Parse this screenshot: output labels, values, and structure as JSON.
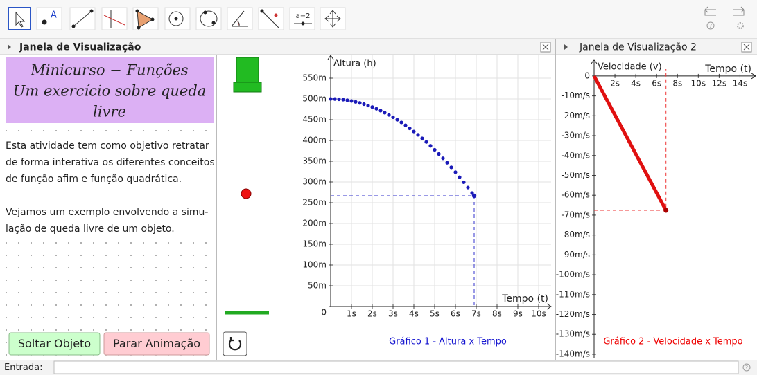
{
  "toolbar": {
    "texts": [
      "A",
      "a=2"
    ],
    "help": "?"
  },
  "panels": [
    "Janela de Visualização",
    "Janela de Visualização 2"
  ],
  "text_box": {
    "title_lines": [
      "Minicurso − Funções",
      "Um exercício sobre queda",
      "livre"
    ],
    "paragraph_lines": [
      "Esta atividade tem como objetivo retratar",
      "de forma interativa os diferentes conceitos",
      "de função afim e função quadrática.",
      "Vejamos um exemplo envolvendo a simu-",
      "lação de queda livre de um objeto."
    ]
  },
  "buttons": [
    "Soltar Objeto",
    "Parar Animação"
  ],
  "graph1": {
    "type": "scatter",
    "title": "Gráfico 1 - Altura x Tempo",
    "title_color": "#1515d0",
    "y_label": "Altura (h)",
    "x_label": "Tempo (t)",
    "xlim": [
      0,
      10.6
    ],
    "ylim": [
      0,
      605
    ],
    "xticks": [
      {
        "value": 1,
        "label": "1s"
      },
      {
        "value": 2,
        "label": "2s"
      },
      {
        "value": 3,
        "label": "3s"
      },
      {
        "value": 4,
        "label": "4s"
      },
      {
        "value": 5,
        "label": "5s"
      },
      {
        "value": 6,
        "label": "6s"
      },
      {
        "value": 7,
        "label": "7s"
      },
      {
        "value": 8,
        "label": "8s"
      },
      {
        "value": 9,
        "label": "9s"
      },
      {
        "value": 10,
        "label": "10s"
      }
    ],
    "yticks": [
      0,
      {
        "value": 50,
        "label": "50m"
      },
      {
        "value": 100,
        "label": "100m"
      },
      {
        "value": 150,
        "label": "150m"
      },
      {
        "value": 200,
        "label": "200m"
      },
      {
        "value": 250,
        "label": "250m"
      },
      {
        "value": 300,
        "label": "300m"
      },
      {
        "value": 350,
        "label": "350m"
      },
      {
        "value": 400,
        "label": "400m"
      },
      {
        "value": 450,
        "label": "450m"
      },
      {
        "value": 500,
        "label": "500m"
      },
      {
        "value": 550,
        "label": "550m"
      }
    ],
    "grid": true,
    "series": {
      "color": "#1a1ab8",
      "x": [
        0,
        0.2,
        0.4,
        0.6,
        0.8,
        1.0,
        1.2,
        1.4,
        1.6,
        1.8,
        2.0,
        2.2,
        2.4,
        2.6,
        2.8,
        3.0,
        3.2,
        3.4,
        3.6,
        3.8,
        4.0,
        4.2,
        4.4,
        4.6,
        4.8,
        5.0,
        5.2,
        5.4,
        5.6,
        5.8,
        6.0,
        6.2,
        6.4,
        6.6,
        6.8,
        6.9
      ],
      "values": [
        500,
        499.8,
        499.2,
        498.2,
        496.9,
        495.1,
        492.9,
        490.4,
        487.5,
        484.1,
        480.4,
        476.3,
        471.8,
        466.9,
        461.6,
        455.9,
        449.8,
        443.4,
        436.5,
        429.2,
        421.6,
        413.6,
        405.1,
        396.3,
        387.1,
        377.5,
        367.5,
        357.1,
        346.3,
        335.2,
        323.6,
        311.6,
        299.3,
        286.6,
        273.4,
        266.7
      ]
    }
  },
  "graph2": {
    "type": "line",
    "title": "Gráfico 2 - Velocidade x Tempo",
    "title_color": "#ee0000",
    "y_label": "Velocidade (v)",
    "x_label": "Tempo (t)",
    "xlim": [
      0,
      15.5
    ],
    "ylim": [
      -142.1,
      11.1
    ],
    "xticks": [
      {
        "value": 2,
        "label": "2s"
      },
      {
        "value": 4,
        "label": "4s"
      },
      {
        "value": 6,
        "label": "6s"
      },
      {
        "value": 8,
        "label": "8s"
      },
      {
        "value": 10,
        "label": "10s"
      },
      {
        "value": 12,
        "label": "12s"
      },
      {
        "value": 14,
        "label": "14s"
      }
    ],
    "yticks": [
      0,
      {
        "value": -10,
        "label": "-10m/s"
      },
      {
        "value": -20,
        "label": "-20m/s"
      },
      {
        "value": -30,
        "label": "-30m/s"
      },
      {
        "value": -40,
        "label": "-40m/s"
      },
      {
        "value": -50,
        "label": "-50m/s"
      },
      {
        "value": -60,
        "label": "-60m/s"
      },
      {
        "value": -70,
        "label": "-70m/s"
      },
      {
        "value": -80,
        "label": "-80m/s"
      },
      {
        "value": -90,
        "label": "-90m/s"
      },
      {
        "value": -100,
        "label": "-100m/s"
      },
      {
        "value": -110,
        "label": "-110m/s"
      },
      {
        "value": -120,
        "label": "-120m/s"
      },
      {
        "value": -130,
        "label": "-130m/s"
      },
      {
        "value": -140,
        "label": "-140m/s"
      }
    ],
    "series": {
      "color": "#e01010",
      "x": [
        0,
        6.9
      ],
      "values": [
        0,
        -67.6
      ]
    }
  },
  "input_label": "Entrada:"
}
